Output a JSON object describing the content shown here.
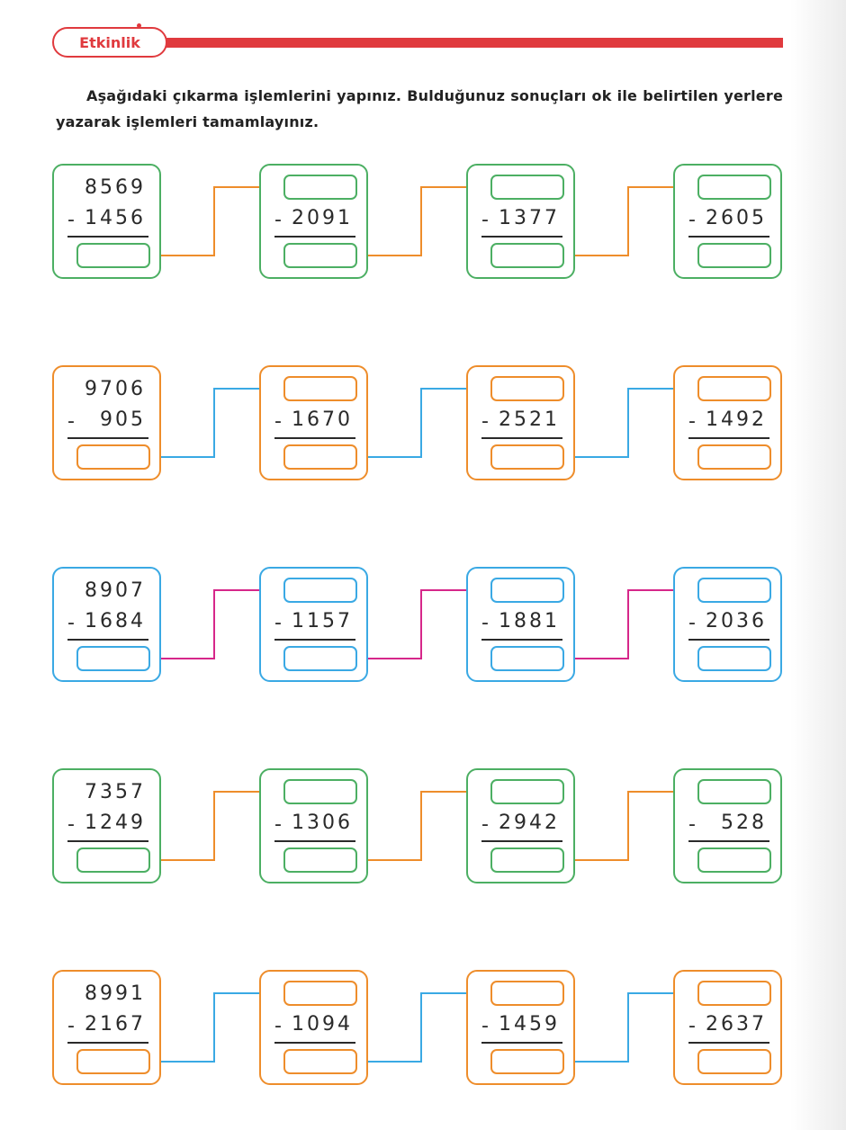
{
  "header": {
    "label": "Etkinlik",
    "accent_color": "#e03a3e"
  },
  "instructions": "Aşağıdaki çıkarma işlemlerini yapınız. Bulduğunuz sonuçları ok ile belirtilen yerlere yazarak işlemleri tamamlayınız.",
  "rows": [
    {
      "color": "#4caf63",
      "arrow_color": "#ee8d2b",
      "start": "8569",
      "subtrahends": [
        "1456",
        "2091",
        "1377",
        "2605"
      ]
    },
    {
      "color": "#ee8d2b",
      "arrow_color": "#3aa9e4",
      "start": "9706",
      "subtrahends": [
        "905",
        "1670",
        "2521",
        "1492"
      ]
    },
    {
      "color": "#3aa9e4",
      "arrow_color": "#d6278a",
      "start": "8907",
      "subtrahends": [
        "1684",
        "1157",
        "1881",
        "2036"
      ]
    },
    {
      "color": "#4caf63",
      "arrow_color": "#ee8d2b",
      "start": "7357",
      "subtrahends": [
        "1249",
        "1306",
        "2942",
        "528"
      ]
    },
    {
      "color": "#ee8d2b",
      "arrow_color": "#3aa9e4",
      "start": "8991",
      "subtrahends": [
        "2167",
        "1094",
        "1459",
        "2637"
      ]
    }
  ],
  "minus_sign": "-",
  "answer_placeholder": ""
}
